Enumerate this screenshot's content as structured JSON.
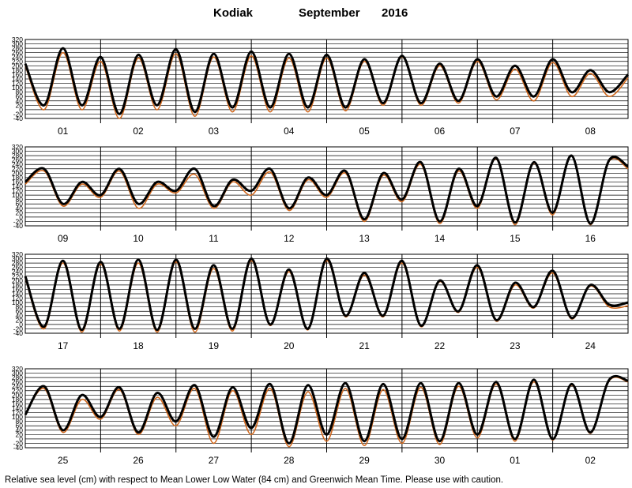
{
  "title": {
    "station": "Kodiak",
    "month": "September",
    "year": "2016"
  },
  "footer": "Relative sea level (cm) with respect to Mean Lower Low Water (84 cm) and Greenwich Mean Time. Please use with caution.",
  "chart_data": {
    "type": "line",
    "y_ticks": [
      -40,
      -20,
      0,
      20,
      40,
      60,
      80,
      100,
      120,
      140,
      160,
      180,
      200,
      220,
      240,
      260,
      280,
      300,
      320
    ],
    "ylim": [
      -40,
      320
    ],
    "grid": true,
    "colors": {
      "observed": "#000000",
      "predicted": "#d2691e"
    },
    "panels": [
      {
        "days": [
          "01",
          "02",
          "03",
          "04",
          "05",
          "06",
          "07",
          "08"
        ],
        "observed": [
          210,
          20,
          280,
          20,
          240,
          -20,
          250,
          20,
          275,
          -10,
          255,
          10,
          265,
          10,
          255,
          10,
          250,
          10,
          230,
          30,
          245,
          30,
          210,
          40,
          230,
          60,
          200,
          60,
          230,
          80,
          180,
          80,
          160
        ],
        "predicted": [
          200,
          0,
          260,
          0,
          220,
          -40,
          235,
          0,
          255,
          -30,
          240,
          -10,
          245,
          -10,
          235,
          -10,
          235,
          -5,
          220,
          20,
          240,
          20,
          200,
          30,
          220,
          45,
          185,
          40,
          215,
          60,
          165,
          60,
          145
        ]
      },
      {
        "days": [
          "09",
          "10",
          "11",
          "12",
          "13",
          "14",
          "15",
          "16"
        ],
        "observed": [
          160,
          220,
          60,
          160,
          100,
          220,
          60,
          160,
          120,
          220,
          50,
          170,
          120,
          220,
          40,
          180,
          100,
          210,
          -10,
          200,
          80,
          250,
          -20,
          220,
          50,
          270,
          -25,
          250,
          20,
          280,
          -30,
          260,
          230
        ],
        "predicted": [
          150,
          210,
          50,
          150,
          90,
          210,
          40,
          150,
          110,
          195,
          40,
          160,
          100,
          205,
          30,
          170,
          90,
          200,
          -20,
          190,
          70,
          240,
          -30,
          210,
          40,
          265,
          -35,
          245,
          10,
          280,
          -35,
          255,
          220
        ]
      },
      {
        "days": [
          "17",
          "18",
          "19",
          "20",
          "21",
          "22",
          "23",
          "24"
        ],
        "observed": [
          220,
          -10,
          290,
          -25,
          285,
          -20,
          295,
          -25,
          295,
          -20,
          270,
          -20,
          300,
          0,
          250,
          -20,
          300,
          40,
          235,
          40,
          290,
          -5,
          200,
          60,
          270,
          20,
          190,
          80,
          245,
          30,
          180,
          90,
          100
        ],
        "predicted": [
          210,
          -20,
          280,
          -35,
          275,
          -30,
          280,
          -35,
          285,
          -35,
          255,
          -30,
          290,
          -5,
          240,
          -25,
          290,
          35,
          225,
          35,
          280,
          -10,
          195,
          55,
          260,
          15,
          180,
          75,
          235,
          25,
          175,
          80,
          85
        ]
      },
      {
        "days": [
          "25",
          "26",
          "27",
          "28",
          "29",
          "30",
          "01",
          "02"
        ],
        "observed": [
          110,
          240,
          40,
          200,
          100,
          235,
          30,
          210,
          80,
          245,
          10,
          235,
          50,
          250,
          -20,
          245,
          20,
          255,
          -10,
          250,
          0,
          255,
          -10,
          255,
          20,
          260,
          0,
          270,
          0,
          250,
          30,
          270,
          265
        ],
        "predicted": [
          110,
          230,
          30,
          180,
          90,
          225,
          20,
          190,
          60,
          230,
          -20,
          220,
          20,
          230,
          -35,
          215,
          -10,
          230,
          -30,
          225,
          -20,
          235,
          -25,
          240,
          5,
          250,
          -10,
          260,
          -5,
          245,
          25,
          265,
          260
        ]
      }
    ]
  }
}
